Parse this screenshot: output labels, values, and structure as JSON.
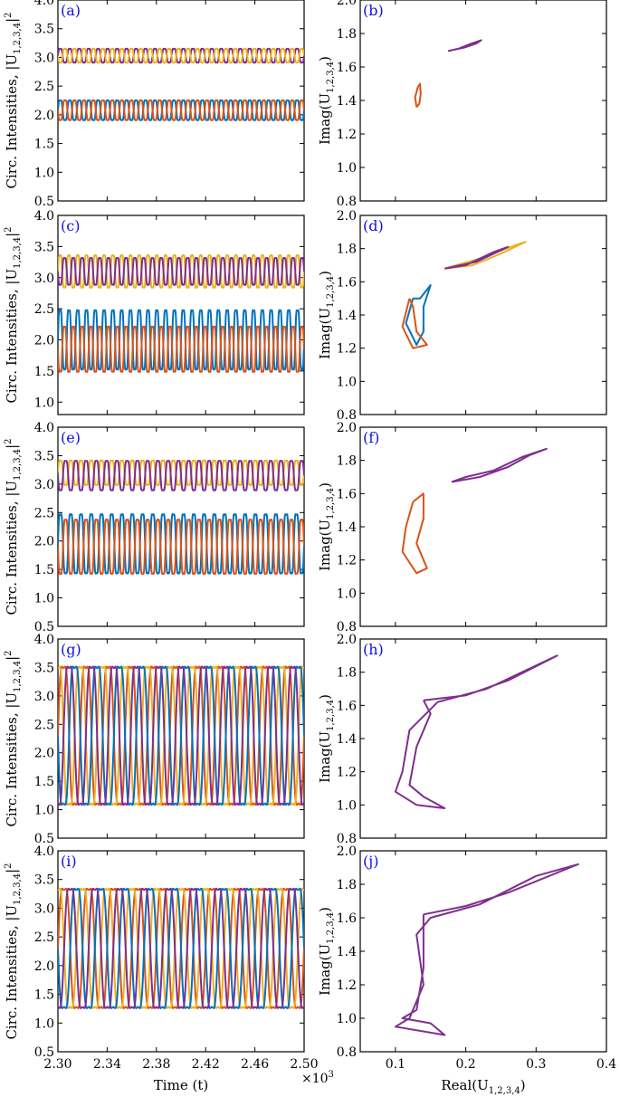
{
  "figure": {
    "ylabel_left": "Circ. Intensities, |U₁,₂,₃,₄|²",
    "ylabel_left_main": "Circ. Intensities, |U",
    "ylabel_left_sub": "1,2,3,4",
    "ylabel_left_sup": "2",
    "ylabel_right": "Imag(U₁,₂,₃,₄)",
    "ylabel_right_main": "Imag(U",
    "ylabel_right_sub": "1,2,3,4",
    "xlabel_left": "Time (t)",
    "xlabel_right": "Real(U₁,₂,₃,₄)",
    "xlabel_right_main": "Real(U",
    "xlabel_right_sub": "1,2,3,4",
    "x_multiplier": "×10³",
    "x_multiplier_main": "×10",
    "x_multiplier_exp": "3"
  },
  "colors": {
    "blue": "#0072bd",
    "orange": "#d95319",
    "yellow": "#edb120",
    "purple": "#7e2f8e",
    "panel_label": "#1010e0"
  },
  "chart_data": [
    {
      "panel": "(a)",
      "type": "line",
      "x_ticks": [
        "2.30",
        "2.34",
        "2.38",
        "2.42",
        "2.46",
        "2.50"
      ],
      "xlim": [
        2.3,
        2.5
      ],
      "ylim": [
        0.5,
        4.0
      ],
      "y_ticks": [
        "0.5",
        "1.0",
        "1.5",
        "2.0",
        "2.5",
        "3.0",
        "3.5",
        "4.0"
      ],
      "series": [
        {
          "color": "purple",
          "mean": 3.03,
          "amplitude": 0.14,
          "oscillations": 26,
          "phase": 0.0
        },
        {
          "color": "yellow",
          "mean": 3.03,
          "amplitude": 0.14,
          "oscillations": 26,
          "phase": 3.14
        },
        {
          "color": "blue",
          "mean": 2.08,
          "amplitude": 0.2,
          "oscillations": 26,
          "phase": 0.0
        },
        {
          "color": "orange",
          "mean": 2.08,
          "amplitude": 0.2,
          "oscillations": 26,
          "phase": 3.14
        }
      ]
    },
    {
      "panel": "(b)",
      "type": "line",
      "xlim": [
        0.05,
        0.4
      ],
      "ylim": [
        0.8,
        2.0
      ],
      "y_ticks": [
        "0.8",
        "1.0",
        "1.2",
        "1.4",
        "1.6",
        "1.8",
        "2.0"
      ],
      "series": [
        {
          "color": "purple",
          "points": [
            [
              0.175,
              1.695
            ],
            [
              0.19,
              1.71
            ],
            [
              0.205,
              1.735
            ],
            [
              0.222,
              1.76
            ],
            [
              0.215,
              1.74
            ],
            [
              0.198,
              1.716
            ],
            [
              0.18,
              1.7
            ],
            [
              0.175,
              1.695
            ]
          ]
        },
        {
          "color": "orange",
          "points": [
            [
              0.13,
              1.36
            ],
            [
              0.128,
              1.42
            ],
            [
              0.132,
              1.48
            ],
            [
              0.135,
              1.5
            ],
            [
              0.136,
              1.44
            ],
            [
              0.134,
              1.38
            ],
            [
              0.13,
              1.36
            ]
          ]
        }
      ]
    },
    {
      "panel": "(c)",
      "type": "line",
      "x_ticks": [
        "2.30",
        "2.34",
        "2.38",
        "2.42",
        "2.46",
        "2.50"
      ],
      "xlim": [
        2.3,
        2.5
      ],
      "ylim": [
        0.8,
        4.0
      ],
      "y_ticks": [
        "1.0",
        "1.5",
        "2.0",
        "2.5",
        "3.0",
        "3.5",
        "4.0"
      ],
      "series": [
        {
          "color": "yellow",
          "mean": 3.1,
          "amplitude": 0.3,
          "oscillations": 28,
          "phase": 0.0
        },
        {
          "color": "purple",
          "mean": 3.1,
          "amplitude": 0.25,
          "oscillations": 28,
          "phase": 3.14
        },
        {
          "color": "blue",
          "mean": 2.0,
          "amplitude": 0.55,
          "oscillations": 28,
          "phase": 0.0
        },
        {
          "color": "orange",
          "mean": 1.85,
          "amplitude": 0.42,
          "oscillations": 28,
          "phase": 3.14
        }
      ]
    },
    {
      "panel": "(d)",
      "type": "line",
      "xlim": [
        0.05,
        0.4
      ],
      "ylim": [
        0.8,
        2.0
      ],
      "y_ticks": [
        "0.8",
        "1.0",
        "1.2",
        "1.4",
        "1.6",
        "1.8",
        "2.0"
      ],
      "series": [
        {
          "color": "yellow",
          "points": [
            [
              0.17,
              1.68
            ],
            [
              0.22,
              1.74
            ],
            [
              0.27,
              1.82
            ],
            [
              0.285,
              1.84
            ],
            [
              0.25,
              1.77
            ],
            [
              0.21,
              1.7
            ],
            [
              0.17,
              1.68
            ]
          ]
        },
        {
          "color": "purple",
          "points": [
            [
              0.17,
              1.68
            ],
            [
              0.215,
              1.72
            ],
            [
              0.26,
              1.81
            ],
            [
              0.24,
              1.78
            ],
            [
              0.2,
              1.7
            ],
            [
              0.17,
              1.68
            ]
          ]
        },
        {
          "color": "blue",
          "points": [
            [
              0.125,
              1.5
            ],
            [
              0.115,
              1.35
            ],
            [
              0.13,
              1.22
            ],
            [
              0.14,
              1.3
            ],
            [
              0.14,
              1.45
            ],
            [
              0.15,
              1.58
            ],
            [
              0.135,
              1.5
            ],
            [
              0.125,
              1.5
            ]
          ]
        },
        {
          "color": "orange",
          "points": [
            [
              0.12,
              1.5
            ],
            [
              0.11,
              1.33
            ],
            [
              0.125,
              1.2
            ],
            [
              0.145,
              1.22
            ],
            [
              0.13,
              1.3
            ],
            [
              0.125,
              1.45
            ],
            [
              0.12,
              1.5
            ]
          ]
        }
      ]
    },
    {
      "panel": "(e)",
      "type": "line",
      "x_ticks": [
        "2.30",
        "2.34",
        "2.38",
        "2.42",
        "2.46",
        "2.50"
      ],
      "xlim": [
        2.3,
        2.5
      ],
      "ylim": [
        0.5,
        4.0
      ],
      "y_ticks": [
        "0.5",
        "1.0",
        "1.5",
        "2.0",
        "2.5",
        "3.0",
        "3.5",
        "4.0"
      ],
      "series": [
        {
          "color": "yellow",
          "mean": 3.2,
          "amplitude": 0.25,
          "oscillations": 24,
          "phase": 0.0
        },
        {
          "color": "purple",
          "mean": 3.15,
          "amplitude": 0.3,
          "oscillations": 24,
          "phase": 3.14
        },
        {
          "color": "blue",
          "mean": 1.95,
          "amplitude": 0.6,
          "oscillations": 24,
          "phase": 0.0
        },
        {
          "color": "orange",
          "mean": 1.9,
          "amplitude": 0.55,
          "oscillations": 24,
          "phase": 3.14
        }
      ]
    },
    {
      "panel": "(f)",
      "type": "line",
      "xlim": [
        0.05,
        0.4
      ],
      "ylim": [
        0.8,
        2.0
      ],
      "y_ticks": [
        "0.8",
        "1.0",
        "1.2",
        "1.4",
        "1.6",
        "1.8",
        "2.0"
      ],
      "series": [
        {
          "color": "purple",
          "points": [
            [
              0.18,
              1.67
            ],
            [
              0.22,
              1.7
            ],
            [
              0.26,
              1.76
            ],
            [
              0.29,
              1.83
            ],
            [
              0.315,
              1.87
            ],
            [
              0.28,
              1.82
            ],
            [
              0.24,
              1.74
            ],
            [
              0.2,
              1.7
            ],
            [
              0.18,
              1.67
            ]
          ]
        },
        {
          "color": "orange",
          "points": [
            [
              0.125,
              1.55
            ],
            [
              0.115,
              1.4
            ],
            [
              0.11,
              1.25
            ],
            [
              0.13,
              1.12
            ],
            [
              0.145,
              1.15
            ],
            [
              0.13,
              1.3
            ],
            [
              0.14,
              1.45
            ],
            [
              0.14,
              1.6
            ],
            [
              0.125,
              1.55
            ]
          ]
        }
      ]
    },
    {
      "panel": "(g)",
      "type": "line",
      "x_ticks": [
        "2.30",
        "2.34",
        "2.38",
        "2.42",
        "2.46",
        "2.50"
      ],
      "xlim": [
        2.3,
        2.5
      ],
      "ylim": [
        0.5,
        4.0
      ],
      "y_ticks": [
        "0.5",
        "1.0",
        "1.5",
        "2.0",
        "2.5",
        "3.0",
        "3.5",
        "4.0"
      ],
      "series": [
        {
          "color": "orange",
          "mean": 2.3,
          "amplitude": 1.4,
          "oscillations": 11,
          "phase": 0.0
        },
        {
          "color": "yellow",
          "mean": 2.3,
          "amplitude": 1.4,
          "oscillations": 11,
          "phase": 1.57
        },
        {
          "color": "blue",
          "mean": 2.3,
          "amplitude": 1.4,
          "oscillations": 11,
          "phase": 3.14
        },
        {
          "color": "purple",
          "mean": 2.3,
          "amplitude": 1.4,
          "oscillations": 11,
          "phase": 4.71
        }
      ]
    },
    {
      "panel": "(h)",
      "type": "line",
      "xlim": [
        0.05,
        0.4
      ],
      "ylim": [
        0.8,
        2.0
      ],
      "y_ticks": [
        "0.8",
        "1.0",
        "1.2",
        "1.4",
        "1.6",
        "1.8",
        "2.0"
      ],
      "series": [
        {
          "color": "purple",
          "points": [
            [
              0.14,
              1.63
            ],
            [
              0.2,
              1.66
            ],
            [
              0.26,
              1.75
            ],
            [
              0.33,
              1.9
            ],
            [
              0.3,
              1.84
            ],
            [
              0.23,
              1.7
            ],
            [
              0.16,
              1.62
            ],
            [
              0.12,
              1.45
            ],
            [
              0.11,
              1.2
            ],
            [
              0.1,
              1.08
            ],
            [
              0.13,
              1.0
            ],
            [
              0.17,
              0.98
            ],
            [
              0.14,
              1.05
            ],
            [
              0.12,
              1.12
            ],
            [
              0.13,
              1.35
            ],
            [
              0.15,
              1.55
            ],
            [
              0.14,
              1.63
            ]
          ]
        }
      ]
    },
    {
      "panel": "(i)",
      "type": "line",
      "x_ticks": [
        "2.30",
        "2.34",
        "2.38",
        "2.42",
        "2.46",
        "2.50"
      ],
      "xlim": [
        2.3,
        2.5
      ],
      "ylim": [
        0.5,
        4.0
      ],
      "y_ticks": [
        "0.5",
        "1.0",
        "1.5",
        "2.0",
        "2.5",
        "3.0",
        "3.5",
        "4.0"
      ],
      "series": [
        {
          "color": "orange",
          "mean": 2.3,
          "amplitude": 1.2,
          "oscillations": 10,
          "phase": 0.0
        },
        {
          "color": "yellow",
          "mean": 2.3,
          "amplitude": 1.2,
          "oscillations": 10,
          "phase": 1.57
        },
        {
          "color": "blue",
          "mean": 2.3,
          "amplitude": 1.2,
          "oscillations": 10,
          "phase": 3.14
        },
        {
          "color": "purple",
          "mean": 2.3,
          "amplitude": 1.2,
          "oscillations": 10,
          "phase": 4.71
        }
      ]
    },
    {
      "panel": "(j)",
      "type": "line",
      "x_ticks": [
        "0.1",
        "0.2",
        "0.3",
        "0.4"
      ],
      "xlim": [
        0.05,
        0.4
      ],
      "ylim": [
        0.8,
        2.0
      ],
      "y_ticks": [
        "0.8",
        "1.0",
        "1.2",
        "1.4",
        "1.6",
        "1.8",
        "2.0"
      ],
      "series": [
        {
          "color": "purple",
          "points": [
            [
              0.14,
              1.62
            ],
            [
              0.2,
              1.67
            ],
            [
              0.26,
              1.75
            ],
            [
              0.36,
              1.92
            ],
            [
              0.3,
              1.85
            ],
            [
              0.22,
              1.68
            ],
            [
              0.15,
              1.6
            ],
            [
              0.13,
              1.5
            ],
            [
              0.14,
              1.2
            ],
            [
              0.12,
              1.0
            ],
            [
              0.1,
              0.95
            ],
            [
              0.17,
              0.9
            ],
            [
              0.15,
              0.97
            ],
            [
              0.11,
              1.0
            ],
            [
              0.13,
              1.05
            ],
            [
              0.14,
              1.3
            ],
            [
              0.14,
              1.62
            ]
          ]
        }
      ]
    }
  ]
}
